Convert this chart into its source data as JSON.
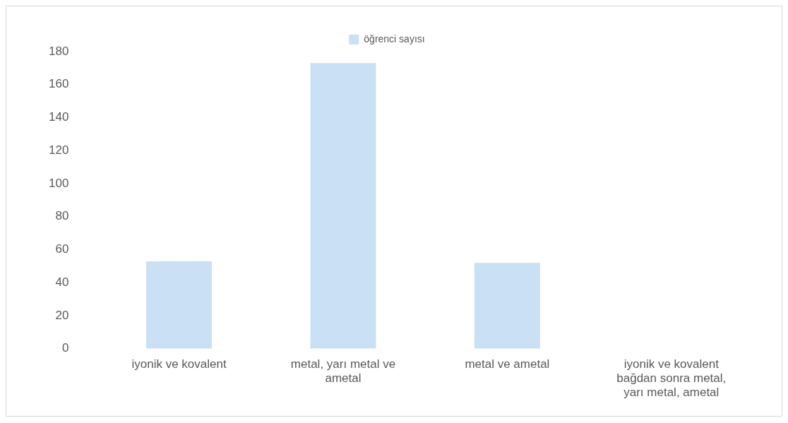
{
  "chart_data": {
    "type": "bar",
    "categories": [
      "iyonik ve kovalent",
      "metal, yarı metal ve ametal",
      "metal ve ametal",
      "iyonik ve kovalent bağdan sonra metal, yarı metal, ametal"
    ],
    "series": [
      {
        "name": "öğrenci sayısı",
        "color": "#c9e0f5",
        "values": [
          53,
          173,
          52,
          0
        ]
      }
    ],
    "ylim": [
      0,
      180
    ],
    "yticks": [
      0,
      20,
      40,
      60,
      80,
      100,
      120,
      140,
      160,
      180
    ],
    "grid": false,
    "legend": "top"
  }
}
